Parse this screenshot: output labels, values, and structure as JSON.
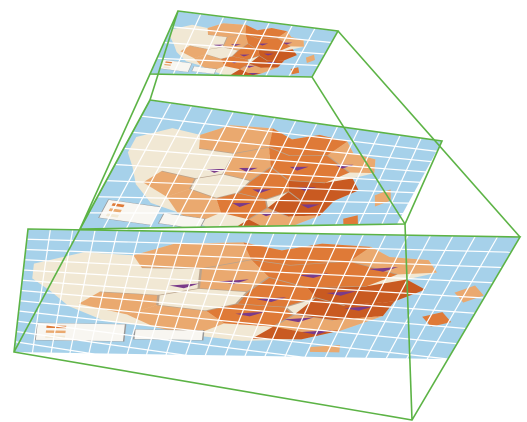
{
  "diagram": {
    "kind": "tile-pyramid",
    "levels": [
      {
        "id": "level-top",
        "grid_columns": 7,
        "grid_rows": 4
      },
      {
        "id": "level-middle",
        "grid_columns": 14,
        "grid_rows": 8
      },
      {
        "id": "level-bottom",
        "grid_columns": 22,
        "grid_rows": 12
      }
    ]
  },
  "colors": {
    "frame": "#5cb345",
    "grid": "#ffffff",
    "ocean": "#a6d1ea",
    "ocean_dark": "#88bfdf",
    "land_light": "#f1e8d4",
    "land_mid": "#eaa96f",
    "land_dark": "#df7a37",
    "land_deep": "#c95a21",
    "border": "#b9a38d",
    "marker": "#7a3b8a",
    "legend_bg": "#f8f6f1"
  }
}
